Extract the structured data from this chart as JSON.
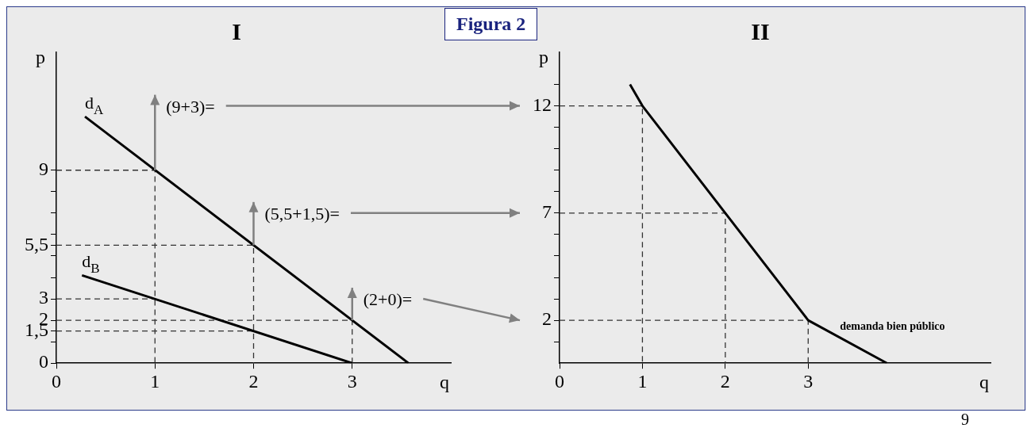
{
  "chart_data": [
    {
      "type": "line",
      "title": "I",
      "xlabel": "q",
      "ylabel": "p",
      "xlim": [
        0,
        4
      ],
      "ylim": [
        0,
        14.5
      ],
      "xticks": [
        0,
        1,
        2,
        3
      ],
      "yticks": [
        0,
        {
          "value": 1,
          "label": null
        },
        {
          "value": 1.5,
          "label": "1,5"
        },
        2,
        3,
        {
          "value": 4,
          "label": null
        },
        {
          "value": 5,
          "label": null
        },
        {
          "value": 5.5,
          "label": "5,5"
        },
        {
          "value": 6,
          "label": null
        },
        {
          "value": 7,
          "label": null
        },
        {
          "value": 8,
          "label": null
        },
        9
      ],
      "marker": "none",
      "series": [
        {
          "name": "d$_{A}$",
          "color": "#000000",
          "x": [
            0.29,
            3.57
          ],
          "values": [
            11.5,
            0
          ]
        },
        {
          "name": "d$_{B}$",
          "color": "#000000",
          "x": [
            0.26,
            3
          ],
          "values": [
            4.1,
            0
          ]
        },
        {
          "color": "#333333",
          "line_style": "dashed",
          "x": [
            0,
            1,
            1
          ],
          "values": [
            9,
            9,
            0
          ]
        },
        {
          "color": "#333333",
          "line_style": "dashed",
          "x": [
            0,
            2,
            2
          ],
          "values": [
            5.5,
            5.5,
            0
          ]
        },
        {
          "color": "#333333",
          "line_style": "dashed",
          "x": [
            0,
            3,
            3
          ],
          "values": [
            2,
            2,
            0
          ]
        },
        {
          "color": "#333333",
          "line_style": "dashed",
          "x": [
            0,
            1
          ],
          "values": [
            3,
            3
          ]
        },
        {
          "color": "#333333",
          "line_style": "dashed",
          "x": [
            0,
            2
          ],
          "values": [
            1.5,
            1.5
          ]
        }
      ],
      "annotations": [
        "Figura 2",
        {
          "text": "(9+3)=",
          "x": 1,
          "y": 9
        },
        {
          "text": "(5,5+1,5)=",
          "x": 2,
          "y": 5.5
        },
        {
          "text": "(2+0)=",
          "x": 3,
          "y": 2
        }
      ]
    },
    {
      "type": "line",
      "title": "II",
      "xlabel": "q",
      "ylabel": "p",
      "xlim": [
        0,
        5.2
      ],
      "ylim": [
        0,
        14.5
      ],
      "xticks": [
        0,
        1,
        2,
        3
      ],
      "yticks": [
        {
          "value": 1,
          "label": null
        },
        2,
        {
          "value": 3,
          "label": null
        },
        {
          "value": 4,
          "label": null
        },
        {
          "value": 5,
          "label": null
        },
        {
          "value": 6,
          "label": null
        },
        7,
        {
          "value": 8,
          "label": null
        },
        {
          "value": 9,
          "label": null
        },
        {
          "value": 10,
          "label": null
        },
        {
          "value": 11,
          "label": null
        },
        12,
        {
          "value": 13,
          "label": null
        }
      ],
      "marker": "none",
      "series": [
        {
          "name": "demanda bien público",
          "color": "#000000",
          "x": [
            0.85,
            1,
            2,
            3,
            3.95
          ],
          "values": [
            13,
            12,
            7,
            2,
            0
          ]
        },
        {
          "color": "#333333",
          "line_style": "dashed",
          "x": [
            0,
            1,
            1
          ],
          "values": [
            12,
            12,
            0
          ]
        },
        {
          "color": "#333333",
          "line_style": "dashed",
          "x": [
            0,
            2,
            2
          ],
          "values": [
            7,
            7,
            0
          ]
        },
        {
          "color": "#333333",
          "line_style": "dashed",
          "x": [
            0,
            3,
            3
          ],
          "values": [
            2,
            2,
            0
          ]
        }
      ],
      "annotations": [
        "9"
      ]
    }
  ]
}
